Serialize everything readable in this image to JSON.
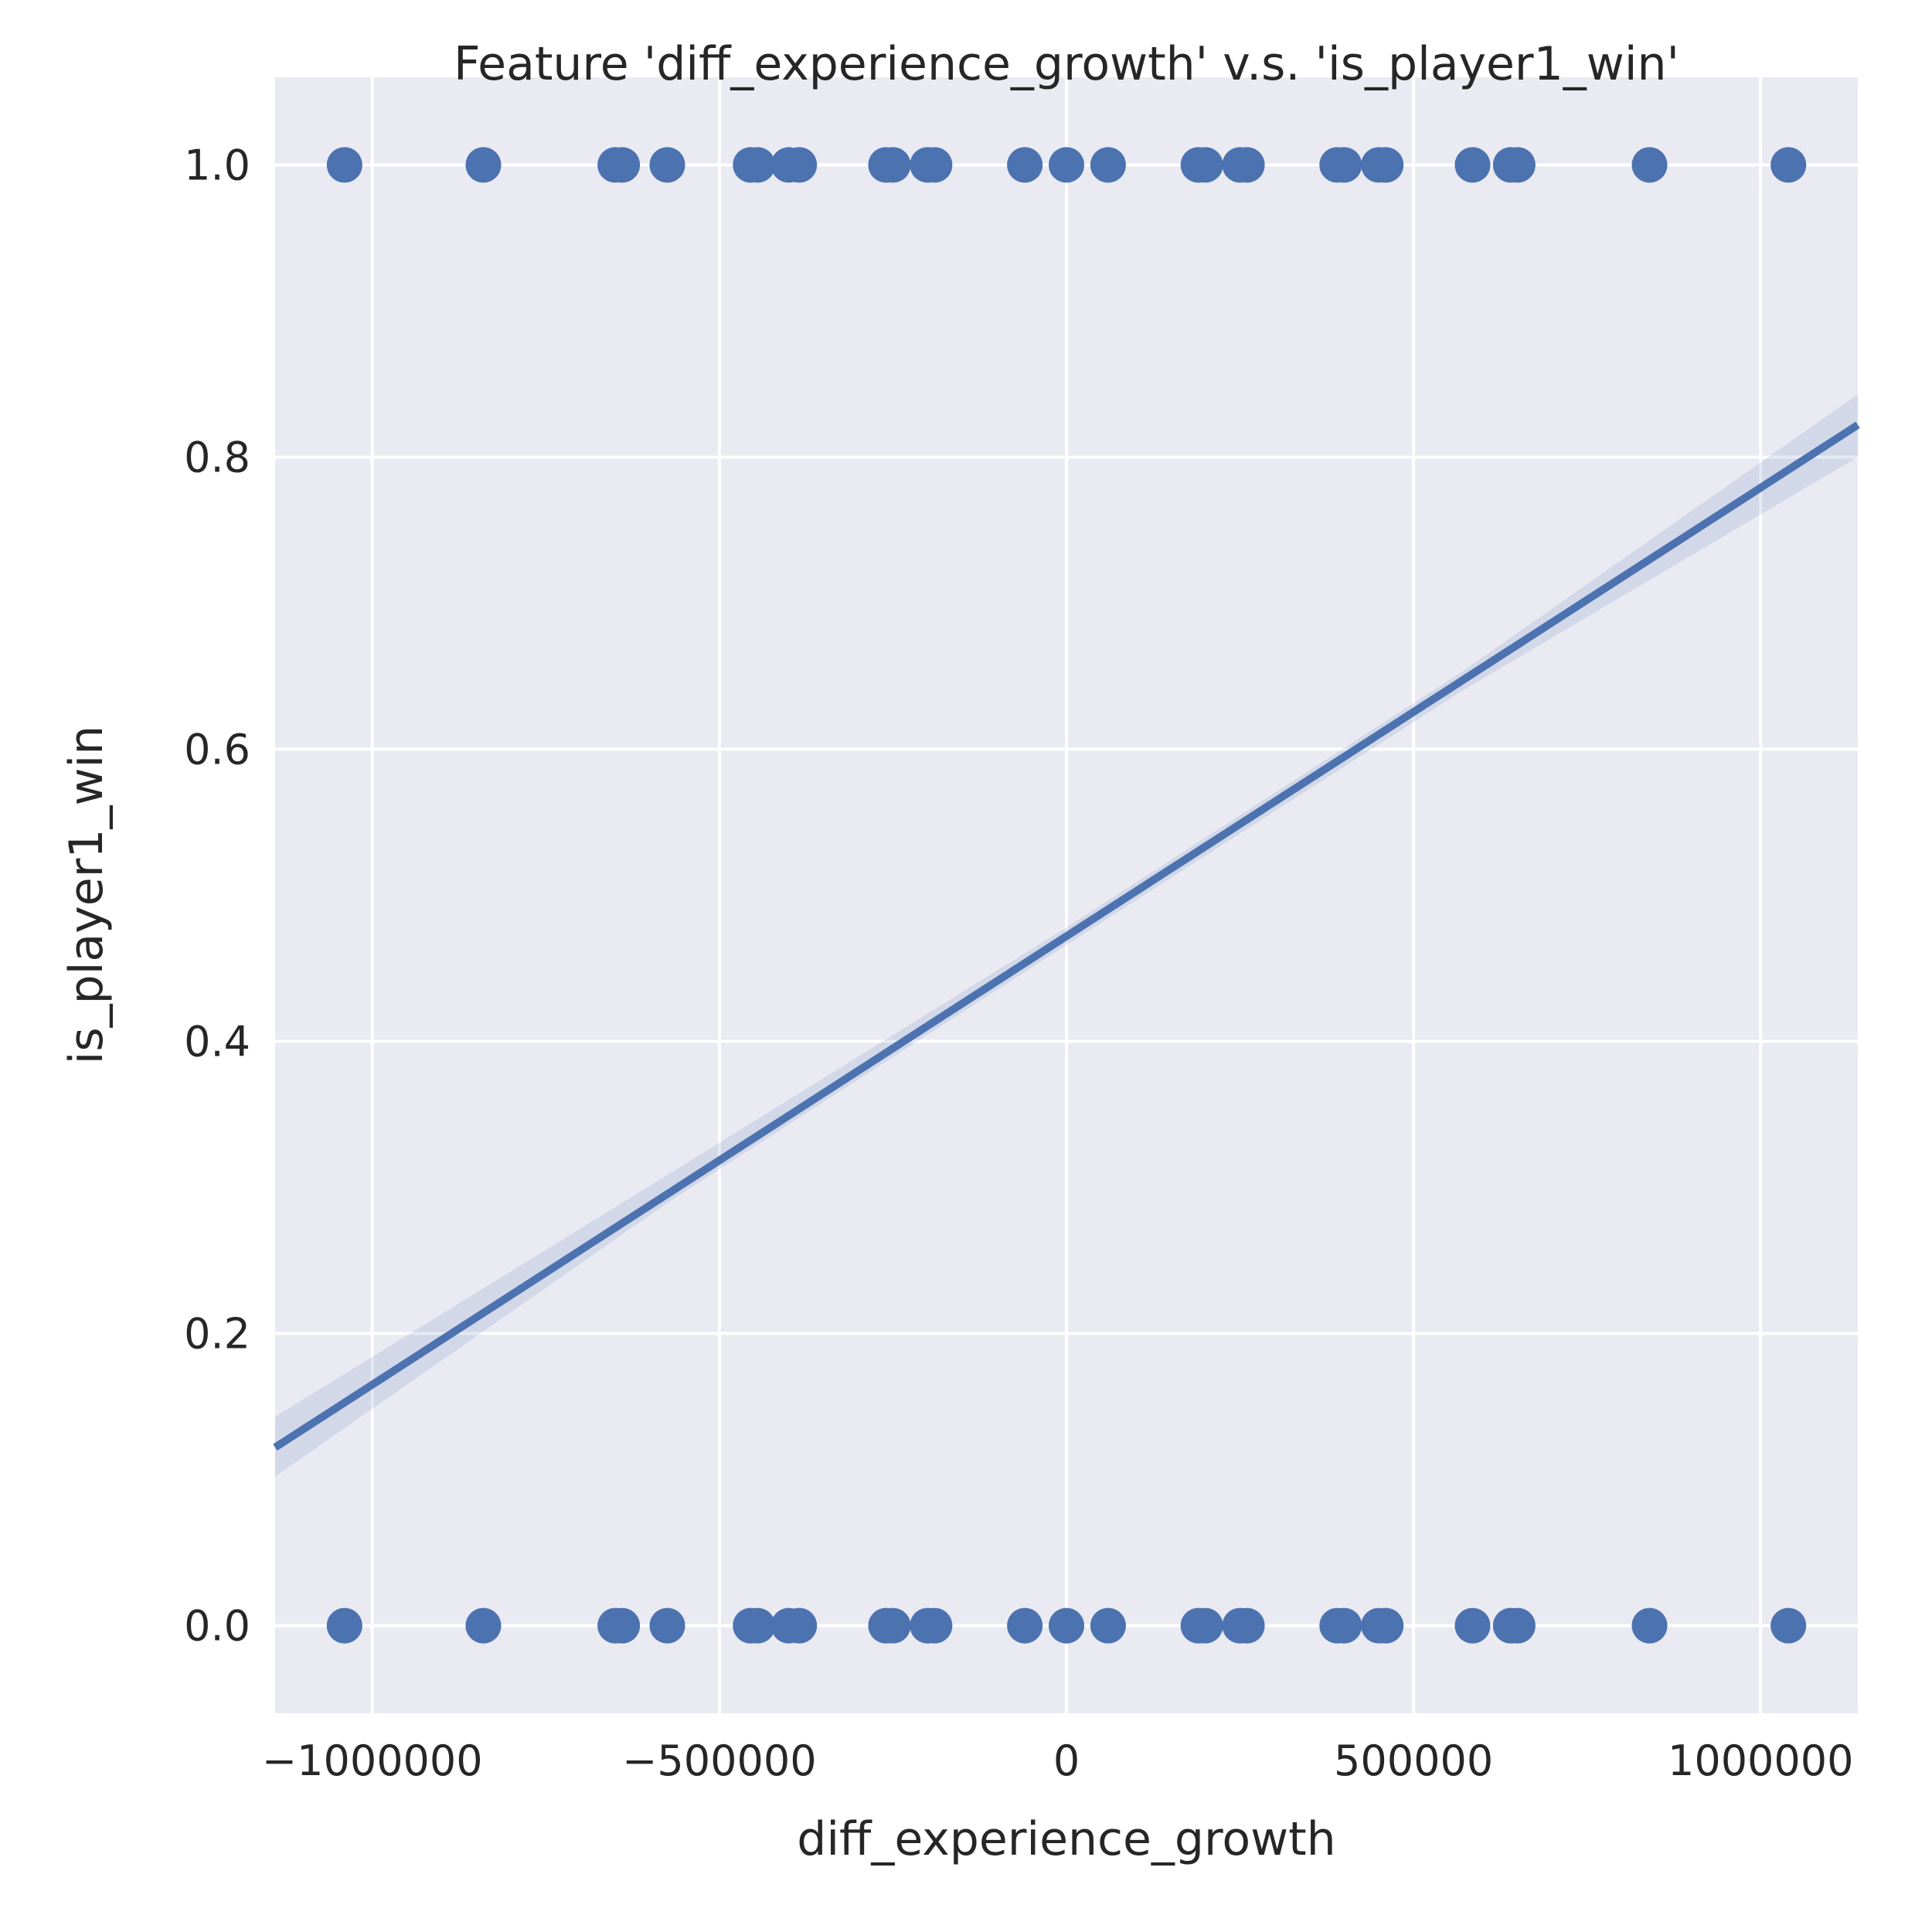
{
  "chart_data": {
    "type": "scatter",
    "title": "Feature 'diff_experience_growth' v.s. 'is_player1_win'",
    "xlabel": "diff_experience_growth",
    "ylabel": "is_player1_win",
    "xlim": [
      -1140000,
      1140000
    ],
    "ylim": [
      -0.06,
      1.06
    ],
    "x_ticks": [
      -1000000,
      -500000,
      0,
      500000,
      1000000
    ],
    "x_tick_labels": [
      "−1000000",
      "−500000",
      "0",
      "500000",
      "1000000"
    ],
    "y_ticks": [
      0.0,
      0.2,
      0.4,
      0.6,
      0.8,
      1.0
    ],
    "y_tick_labels": [
      "0.0",
      "0.2",
      "0.4",
      "0.6",
      "0.8",
      "1.0"
    ],
    "grid": true,
    "background_color": "#eaeaf2",
    "grid_color": "#ffffff",
    "point_color": "#4c72b0",
    "line_color": "#4c72b0",
    "points": [
      {
        "x": -1040000,
        "y": 1
      },
      {
        "x": -840000,
        "y": 1
      },
      {
        "x": -650000,
        "y": 1
      },
      {
        "x": -640000,
        "y": 1
      },
      {
        "x": -575000,
        "y": 1
      },
      {
        "x": -455000,
        "y": 1
      },
      {
        "x": -445000,
        "y": 1
      },
      {
        "x": -400000,
        "y": 1
      },
      {
        "x": -385000,
        "y": 1
      },
      {
        "x": -260000,
        "y": 1
      },
      {
        "x": -250000,
        "y": 1
      },
      {
        "x": -200000,
        "y": 1
      },
      {
        "x": -190000,
        "y": 1
      },
      {
        "x": -60000,
        "y": 1
      },
      {
        "x": 0,
        "y": 1
      },
      {
        "x": 60000,
        "y": 1
      },
      {
        "x": 190000,
        "y": 1
      },
      {
        "x": 200000,
        "y": 1
      },
      {
        "x": 250000,
        "y": 1
      },
      {
        "x": 260000,
        "y": 1
      },
      {
        "x": 390000,
        "y": 1
      },
      {
        "x": 400000,
        "y": 1
      },
      {
        "x": 450000,
        "y": 1
      },
      {
        "x": 460000,
        "y": 1
      },
      {
        "x": 585000,
        "y": 1
      },
      {
        "x": 640000,
        "y": 1
      },
      {
        "x": 650000,
        "y": 1
      },
      {
        "x": 840000,
        "y": 1
      },
      {
        "x": 1040000,
        "y": 1
      },
      {
        "x": -1040000,
        "y": 0
      },
      {
        "x": -840000,
        "y": 0
      },
      {
        "x": -650000,
        "y": 0
      },
      {
        "x": -640000,
        "y": 0
      },
      {
        "x": -575000,
        "y": 0
      },
      {
        "x": -455000,
        "y": 0
      },
      {
        "x": -445000,
        "y": 0
      },
      {
        "x": -400000,
        "y": 0
      },
      {
        "x": -385000,
        "y": 0
      },
      {
        "x": -260000,
        "y": 0
      },
      {
        "x": -250000,
        "y": 0
      },
      {
        "x": -200000,
        "y": 0
      },
      {
        "x": -190000,
        "y": 0
      },
      {
        "x": -60000,
        "y": 0
      },
      {
        "x": 0,
        "y": 0
      },
      {
        "x": 60000,
        "y": 0
      },
      {
        "x": 190000,
        "y": 0
      },
      {
        "x": 200000,
        "y": 0
      },
      {
        "x": 250000,
        "y": 0
      },
      {
        "x": 260000,
        "y": 0
      },
      {
        "x": 390000,
        "y": 0
      },
      {
        "x": 400000,
        "y": 0
      },
      {
        "x": 450000,
        "y": 0
      },
      {
        "x": 460000,
        "y": 0
      },
      {
        "x": 585000,
        "y": 0
      },
      {
        "x": 640000,
        "y": 0
      },
      {
        "x": 650000,
        "y": 0
      },
      {
        "x": 840000,
        "y": 0
      },
      {
        "x": 1040000,
        "y": 0
      }
    ],
    "regression_line": {
      "x": [
        -1140000,
        1140000
      ],
      "y": [
        0.122,
        0.822
      ]
    },
    "confidence_band": {
      "x": [
        -1140000,
        -570000,
        0,
        570000,
        1140000
      ],
      "lower": [
        0.102,
        0.291,
        0.466,
        0.64,
        0.8
      ],
      "upper": [
        0.143,
        0.31,
        0.478,
        0.653,
        0.843
      ]
    }
  }
}
